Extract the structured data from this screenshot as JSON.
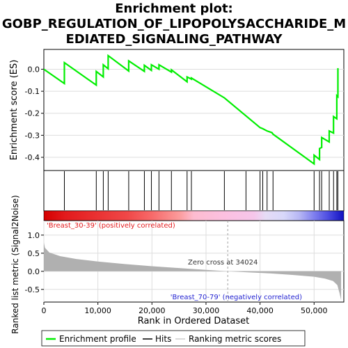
{
  "title_lines": [
    "Enrichment plot:",
    "GOBP_REGULATION_OF_LIPOPOLYSACCHARIDE_M",
    "EDIATED_SIGNALING_PATHWAY"
  ],
  "colors": {
    "es_line": "#00ee00",
    "hits": "#000000",
    "metric_fill": "#b0b0b0",
    "pos_label": "#e41a1c",
    "neg_label": "#1f1fd0",
    "zero_cross_line": "#a0a0a0"
  },
  "chart_data": [
    {
      "type": "line",
      "name": "enrichment-profile",
      "ylabel": "Enrichment score (ES)",
      "ylim": [
        -0.46,
        0.09
      ],
      "yticks": [
        0.0,
        -0.1,
        -0.2,
        -0.3,
        -0.4
      ],
      "ytick_labels": [
        "0.0",
        "-0.1",
        "-0.2",
        "-0.3",
        "-0.4"
      ],
      "grid": true,
      "x": [
        0,
        3800,
        3800,
        9700,
        9700,
        11000,
        11000,
        11900,
        11900,
        15700,
        15700,
        18600,
        18600,
        19900,
        19900,
        21300,
        21300,
        23600,
        23600,
        26500,
        26500,
        27300,
        27300,
        33400,
        40000,
        40500,
        41300,
        42200,
        42400,
        50000,
        50000,
        51000,
        51000,
        51400,
        51400,
        52800,
        52800,
        53600,
        53600,
        54200,
        54200,
        54400,
        54400
      ],
      "y": [
        0.0,
        -0.065,
        0.03,
        -0.072,
        -0.01,
        -0.035,
        0.02,
        0.002,
        0.062,
        -0.008,
        0.038,
        -0.01,
        0.018,
        -0.005,
        0.02,
        0.0,
        0.02,
        -0.013,
        -0.003,
        -0.057,
        -0.035,
        -0.045,
        -0.04,
        -0.13,
        -0.265,
        -0.27,
        -0.28,
        -0.288,
        -0.295,
        -0.43,
        -0.39,
        -0.41,
        -0.36,
        -0.355,
        -0.31,
        -0.33,
        -0.28,
        -0.29,
        -0.215,
        -0.225,
        -0.12,
        -0.125,
        0.005
      ]
    },
    {
      "type": "scatter",
      "name": "hits",
      "hit_positions": [
        3800,
        9700,
        11000,
        11900,
        15700,
        18600,
        19900,
        21300,
        23600,
        26500,
        27300,
        33400,
        37400,
        40000,
        40500,
        41300,
        42400,
        50000,
        51000,
        51400,
        52800,
        53600,
        54200,
        54400
      ]
    },
    {
      "type": "area",
      "name": "ranking-metric",
      "xlabel": "Rank in Ordered Dataset",
      "ylabel": "Ranked list metric (Signal2Noise)",
      "xlim": [
        0,
        55500
      ],
      "xticks": [
        0,
        10000,
        20000,
        30000,
        40000,
        50000
      ],
      "xtick_labels": [
        "0",
        "10,000",
        "20,000",
        "30,000",
        "40,000",
        "50,000"
      ],
      "ylim": [
        -0.85,
        1.4
      ],
      "yticks": [
        1.0,
        0.5,
        0.0,
        -0.5
      ],
      "ytick_labels": [
        "1.0",
        "0.5",
        "0.0",
        "-0.5"
      ],
      "x": [
        0,
        200,
        1000,
        3000,
        6000,
        10000,
        15000,
        20000,
        25000,
        30000,
        34024,
        38000,
        42000,
        46000,
        50000,
        52000,
        53500,
        54300,
        54700,
        55000
      ],
      "y": [
        0.8,
        0.65,
        0.52,
        0.42,
        0.34,
        0.27,
        0.2,
        0.14,
        0.09,
        0.04,
        0.0,
        -0.03,
        -0.06,
        -0.1,
        -0.15,
        -0.2,
        -0.27,
        -0.38,
        -0.6,
        -0.8
      ],
      "zero_cross": 34024
    }
  ],
  "annotations": {
    "positive": "'Breast_30-39' (positively correlated)",
    "negative": "'Breast_70-79' (negatively correlated)",
    "zero_cross": "Zero cross at 34024"
  },
  "legend": {
    "items": [
      {
        "label": "Enrichment profile",
        "kind": "green-line"
      },
      {
        "label": "Hits",
        "kind": "black-line"
      },
      {
        "label": "Ranking metric scores",
        "kind": "gray-line"
      }
    ]
  }
}
